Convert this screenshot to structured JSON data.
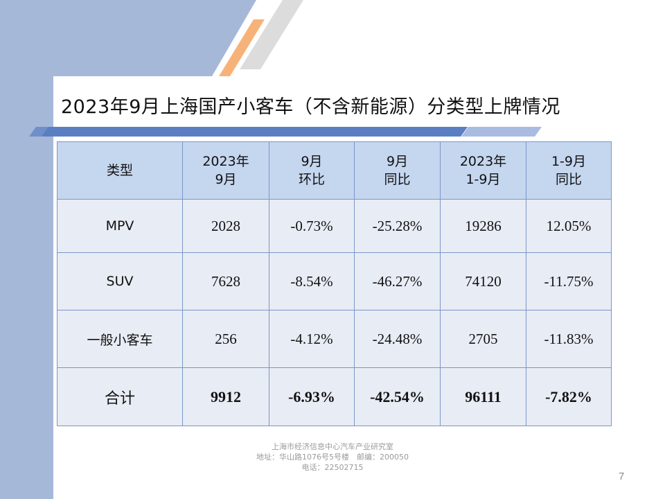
{
  "title": "2023年9月上海国产小客车（不含新能源）分类型上牌情况",
  "table": {
    "headers": [
      [
        "类型"
      ],
      [
        "2023年",
        "9月"
      ],
      [
        "9月",
        "环比"
      ],
      [
        "9月",
        "同比"
      ],
      [
        "2023年",
        "1-9月"
      ],
      [
        "1-9月",
        "同比"
      ]
    ],
    "rows": [
      [
        "MPV",
        "2028",
        "-0.73%",
        "-25.28%",
        "19286",
        "12.05%"
      ],
      [
        "SUV",
        "7628",
        "-8.54%",
        "-46.27%",
        "74120",
        "-11.75%"
      ],
      [
        "一般小客车",
        "256",
        "-4.12%",
        "-24.48%",
        "2705",
        "-11.83%"
      ],
      [
        "合计",
        "9912",
        "-6.93%",
        "-42.54%",
        "96111",
        "-7.82%"
      ]
    ]
  },
  "footer": {
    "org": "上海市经济信息中心汽车产业研究室",
    "address": "地址：华山路1076号5号楼　邮编：200050",
    "phone": "电话：22502715"
  },
  "page_number": "7",
  "colors": {
    "sidebar": "#a6b8d8",
    "header_cell": "#c5d6ef",
    "body_cell": "#e8ecf4",
    "border": "#7a96c8",
    "accent_orange": "#f7b27a",
    "title_bar": "#5b7ec2"
  }
}
